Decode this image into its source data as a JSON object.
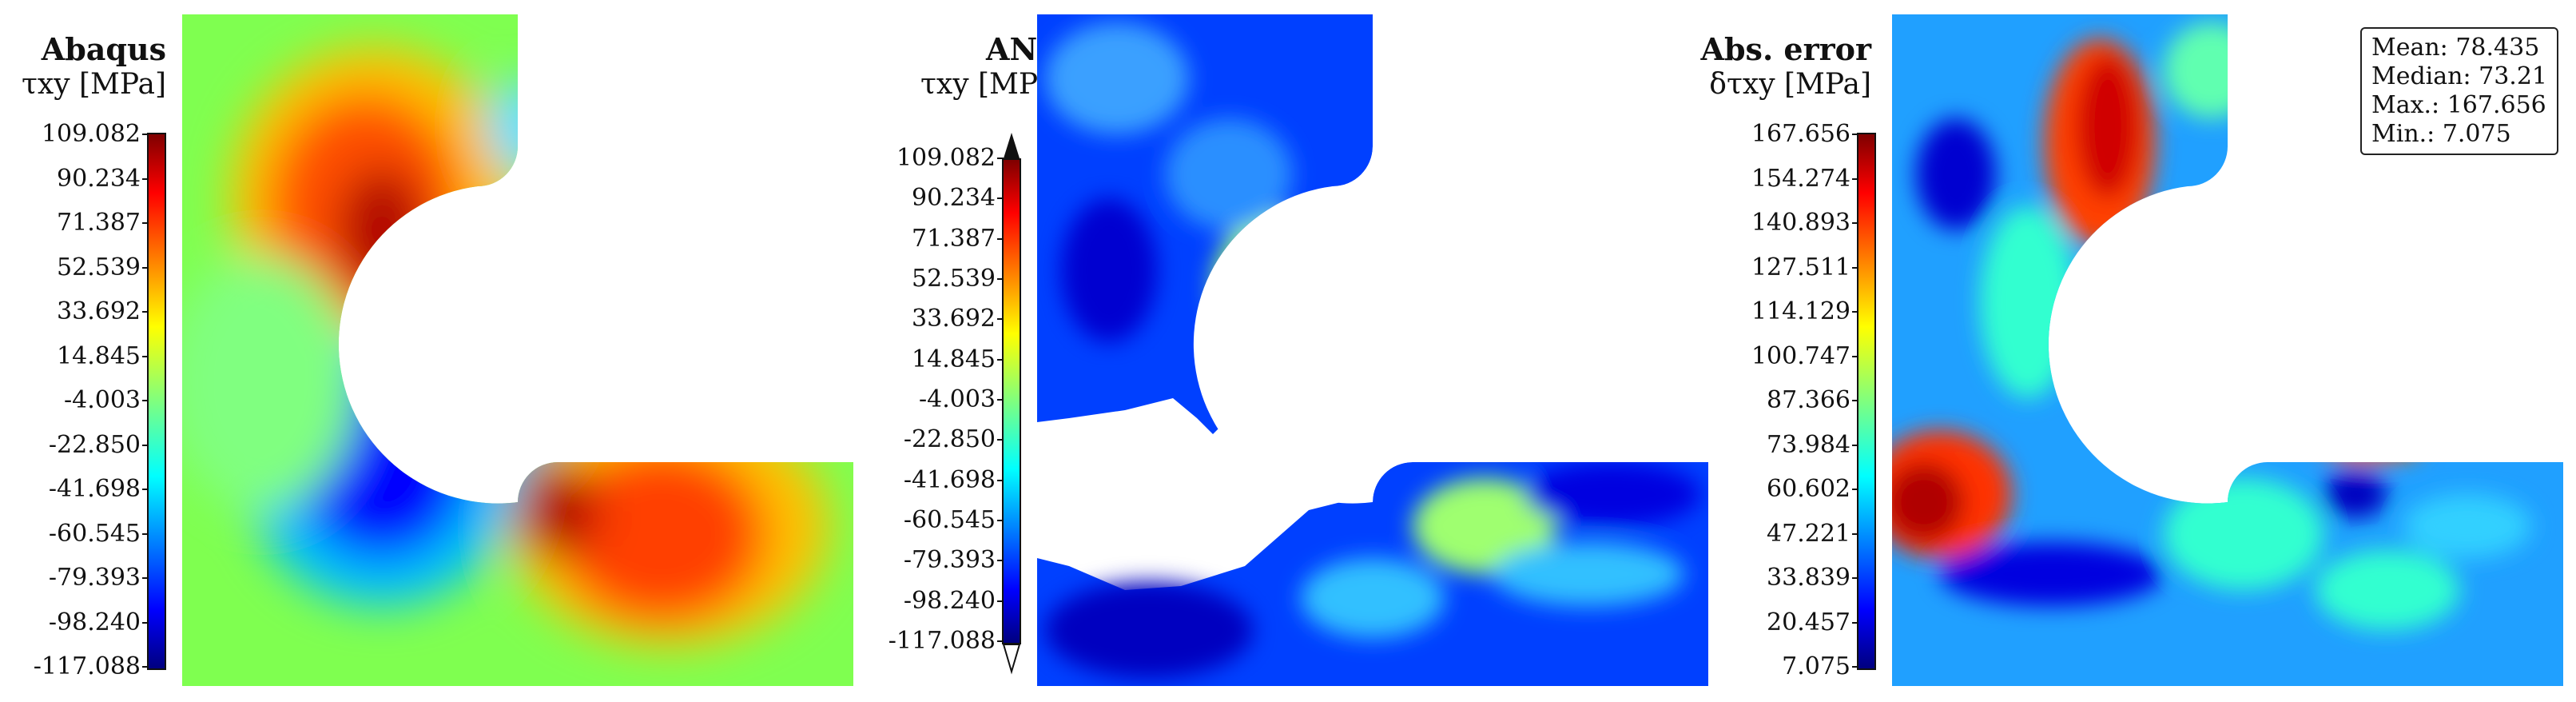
{
  "panels": [
    {
      "title": "Abaqus",
      "subtitle": "τxy [MPa]",
      "ticks": [
        "109.082",
        "90.234",
        "71.387",
        "52.539",
        "33.692",
        "14.845",
        "-4.003",
        "-22.850",
        "-41.698",
        "-60.545",
        "-79.393",
        "-98.240",
        "-117.088"
      ]
    },
    {
      "title": "ANN",
      "subtitle": "τxy [MPa]",
      "ticks": [
        "109.082",
        "90.234",
        "71.387",
        "52.539",
        "33.692",
        "14.845",
        "-4.003",
        "-22.850",
        "-41.698",
        "-60.545",
        "-79.393",
        "-98.240",
        "-117.088"
      ]
    },
    {
      "title": "Abs. error",
      "subtitle": "δτxy [MPa]",
      "ticks": [
        "167.656",
        "154.274",
        "140.893",
        "127.511",
        "114.129",
        "100.747",
        "87.366",
        "73.984",
        "60.602",
        "47.221",
        "33.839",
        "20.457",
        "7.075"
      ]
    }
  ],
  "stats": {
    "mean": "Mean: 78.435",
    "median": "Median: 73.21",
    "max": "Max.: 167.656",
    "min": "Min.: 7.075"
  },
  "colormap": [
    "#00007f",
    "#0000ff",
    "#007fff",
    "#00ffff",
    "#7fff7f",
    "#ffff00",
    "#ff7f00",
    "#ff0000",
    "#7f0000"
  ]
}
